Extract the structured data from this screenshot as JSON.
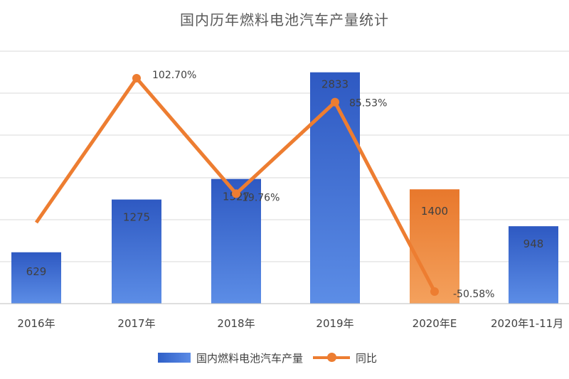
{
  "chart_data": {
    "type": "bar",
    "title": "国内历年燃料电池汽车产量统计",
    "categories": [
      "2016年",
      "2017年",
      "2018年",
      "2019年",
      "2020年E",
      "2020年1-11月"
    ],
    "series": [
      {
        "name": "国内燃料电池汽车产量",
        "type": "bar",
        "values": [
          629,
          1275,
          1527,
          2833,
          1400,
          948
        ],
        "data_labels": [
          "629",
          "1275",
          "1527",
          "2833",
          "1400",
          "948"
        ],
        "highlight_index": 4
      },
      {
        "name": "同比",
        "type": "line",
        "values": [
          null,
          102.7,
          19.76,
          85.53,
          -50.58,
          null
        ],
        "data_labels": [
          null,
          "102.70%",
          "19.76%",
          "85.53%",
          "-50.58%",
          null
        ]
      }
    ],
    "point_2016_line_value": 0,
    "grid": true,
    "legend_position": "bottom",
    "colors": {
      "bar": "#3d6fd6",
      "bar_highlight": "#ed7d31",
      "line": "#ed7d31",
      "grid": "#d9d9d9",
      "text": "#404040"
    }
  }
}
